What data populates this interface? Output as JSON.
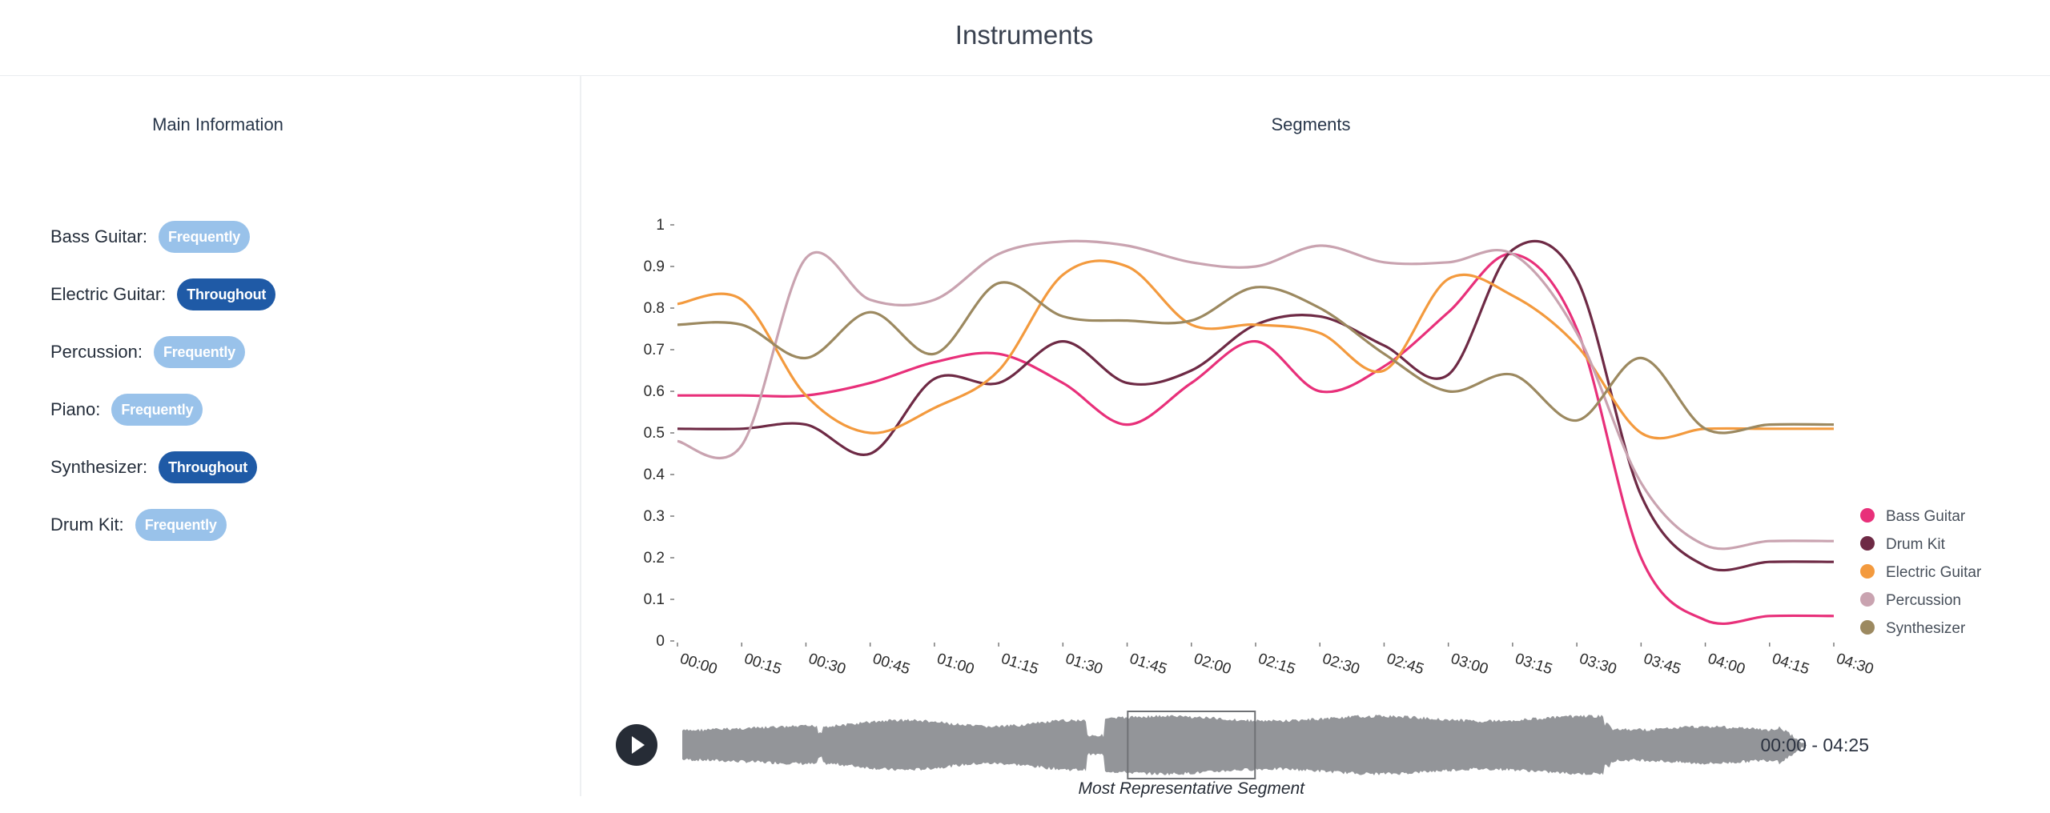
{
  "page": {
    "title": "Instruments"
  },
  "main_info": {
    "title": "Main Information",
    "instruments": [
      {
        "name": "Bass Guitar:",
        "badge": "Frequently",
        "kind": "frequently"
      },
      {
        "name": "Electric Guitar:",
        "badge": "Throughout",
        "kind": "throughout"
      },
      {
        "name": "Percussion:",
        "badge": "Frequently",
        "kind": "frequently"
      },
      {
        "name": "Piano:",
        "badge": "Frequently",
        "kind": "frequently"
      },
      {
        "name": "Synthesizer:",
        "badge": "Throughout",
        "kind": "throughout"
      },
      {
        "name": "Drum Kit:",
        "badge": "Frequently",
        "kind": "frequently"
      }
    ]
  },
  "segments": {
    "title": "Segments",
    "player": {
      "play_icon": "play-icon",
      "time_range": "00:00 - 04:25",
      "segment_caption": "Most Representative Segment",
      "segment_start_seconds": 105,
      "segment_end_seconds": 135,
      "waveform_color": "#939599"
    }
  },
  "chart_data": {
    "type": "line",
    "title": "",
    "xlabel": "",
    "ylabel": "",
    "ylim": [
      0,
      1
    ],
    "y_ticks": [
      "0",
      "0.1",
      "0.2",
      "0.3",
      "0.4",
      "0.5",
      "0.6",
      "0.7",
      "0.8",
      "0.9",
      "1"
    ],
    "x_ticks": [
      "00:00",
      "00:15",
      "00:30",
      "00:45",
      "01:00",
      "01:15",
      "01:30",
      "01:45",
      "02:00",
      "02:15",
      "02:30",
      "02:45",
      "03:00",
      "03:15",
      "03:30",
      "03:45",
      "04:00",
      "04:15",
      "04:30"
    ],
    "grid": false,
    "legend_position": "right",
    "series": [
      {
        "name": "Bass Guitar",
        "color": "#e8307a",
        "values": [
          0.59,
          0.59,
          0.59,
          0.62,
          0.67,
          0.69,
          0.62,
          0.52,
          0.62,
          0.72,
          0.6,
          0.66,
          0.79,
          0.93,
          0.75,
          0.2,
          0.05,
          0.06,
          0.06
        ]
      },
      {
        "name": "Drum Kit",
        "color": "#6e2a45",
        "values": [
          0.51,
          0.51,
          0.52,
          0.45,
          0.63,
          0.62,
          0.72,
          0.62,
          0.65,
          0.76,
          0.78,
          0.71,
          0.64,
          0.94,
          0.87,
          0.35,
          0.18,
          0.19,
          0.19
        ]
      },
      {
        "name": "Electric Guitar",
        "color": "#f39a3e",
        "values": [
          0.81,
          0.82,
          0.59,
          0.5,
          0.56,
          0.65,
          0.88,
          0.9,
          0.76,
          0.76,
          0.74,
          0.65,
          0.87,
          0.83,
          0.71,
          0.5,
          0.51,
          0.51,
          0.51
        ]
      },
      {
        "name": "Percussion",
        "color": "#c9a3b0",
        "values": [
          0.48,
          0.47,
          0.92,
          0.82,
          0.82,
          0.93,
          0.96,
          0.95,
          0.91,
          0.9,
          0.95,
          0.91,
          0.91,
          0.93,
          0.74,
          0.38,
          0.23,
          0.24,
          0.24
        ]
      },
      {
        "name": "Synthesizer",
        "color": "#9c8960",
        "values": [
          0.76,
          0.76,
          0.68,
          0.79,
          0.69,
          0.86,
          0.78,
          0.77,
          0.77,
          0.85,
          0.8,
          0.69,
          0.6,
          0.64,
          0.53,
          0.68,
          0.51,
          0.52,
          0.52
        ]
      }
    ]
  }
}
